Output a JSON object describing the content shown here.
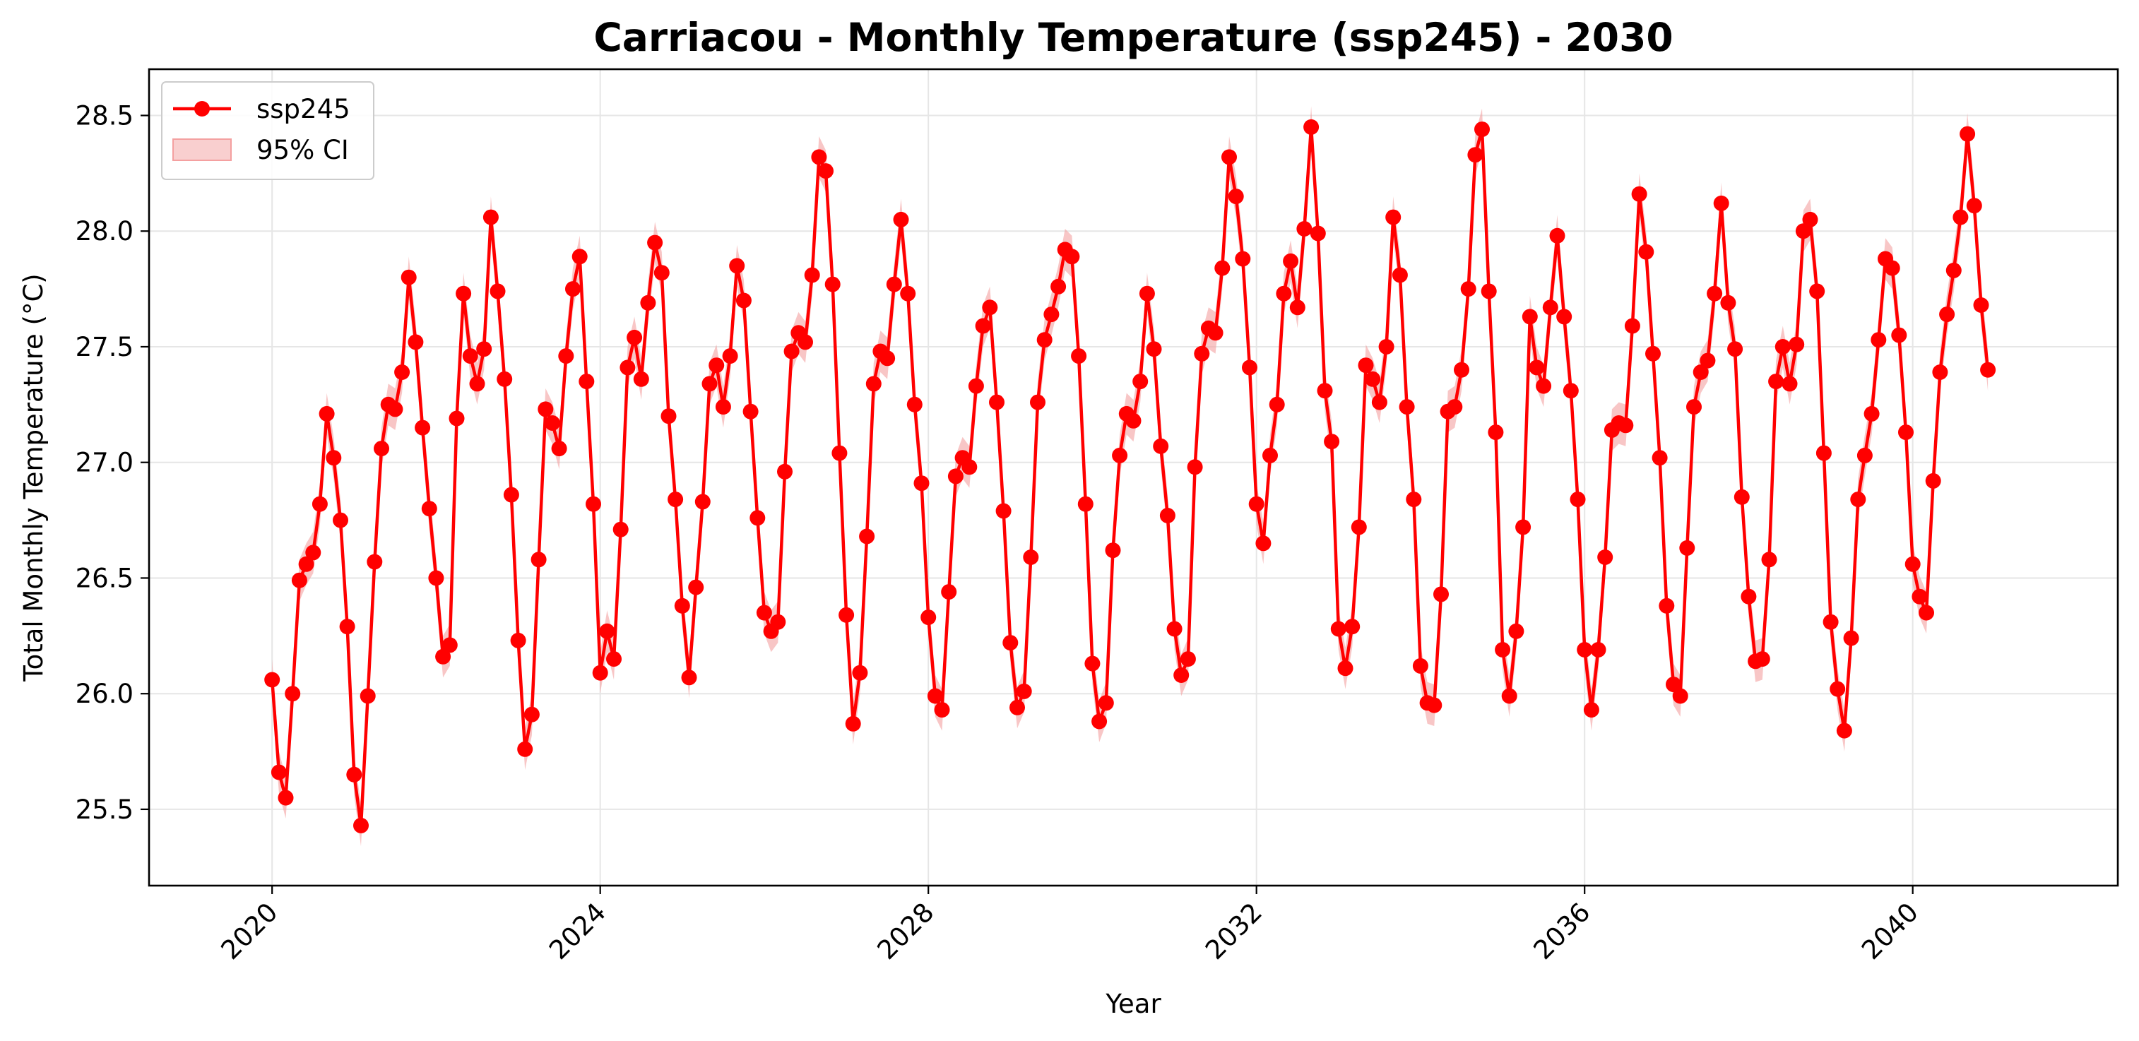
{
  "chart_data": {
    "type": "line",
    "title": "Carriacou - Monthly Temperature (ssp245) - 2030",
    "xlabel": "Year",
    "ylabel": "Total Monthly Temperature (°C)",
    "xlim": [
      2018.5,
      2042.5
    ],
    "ylim": [
      25.17,
      28.7
    ],
    "x_ticks": [
      2020,
      2024,
      2028,
      2032,
      2036,
      2040
    ],
    "x_tick_labels": [
      "2020",
      "2024",
      "2028",
      "2032",
      "2036",
      "2040"
    ],
    "y_ticks": [
      25.5,
      26.0,
      26.5,
      27.0,
      27.5,
      28.0,
      28.5
    ],
    "y_tick_labels": [
      "25.5",
      "26.0",
      "26.5",
      "27.0",
      "27.5",
      "28.0",
      "28.5"
    ],
    "grid": true,
    "legend_position": "top-left",
    "legend": [
      "ssp245",
      "95% CI"
    ],
    "series": [
      {
        "name": "ssp245",
        "color": "#ff0000",
        "ci_color": "#f4a0a0",
        "ci_halfwidth": 0.09,
        "x_start": 2020.0,
        "x_step_months": 1,
        "values": [
          26.06,
          25.66,
          25.55,
          26.0,
          26.49,
          26.56,
          26.61,
          26.82,
          27.21,
          27.02,
          26.75,
          26.29,
          25.65,
          25.43,
          25.99,
          26.57,
          27.06,
          27.25,
          27.23,
          27.39,
          27.8,
          27.52,
          27.15,
          26.8,
          26.5,
          26.16,
          26.21,
          27.19,
          27.73,
          27.46,
          27.34,
          27.49,
          28.06,
          27.74,
          27.36,
          26.86,
          26.23,
          25.76,
          25.91,
          26.58,
          27.23,
          27.17,
          27.06,
          27.46,
          27.75,
          27.89,
          27.35,
          26.82,
          26.09,
          26.27,
          26.15,
          26.71,
          27.41,
          27.54,
          27.36,
          27.69,
          27.95,
          27.82,
          27.2,
          26.84,
          26.38,
          26.07,
          26.46,
          26.83,
          27.34,
          27.42,
          27.24,
          27.46,
          27.85,
          27.7,
          27.22,
          26.76,
          26.35,
          26.27,
          26.31,
          26.96,
          27.48,
          27.56,
          27.52,
          27.81,
          28.32,
          28.26,
          27.77,
          27.04,
          26.34,
          25.87,
          26.09,
          26.68,
          27.34,
          27.48,
          27.45,
          27.77,
          28.05,
          27.73,
          27.25,
          26.91,
          26.33,
          25.99,
          25.93,
          26.44,
          26.94,
          27.02,
          26.98,
          27.33,
          27.59,
          27.67,
          27.26,
          26.79,
          26.22,
          25.94,
          26.01,
          26.59,
          27.26,
          27.53,
          27.64,
          27.76,
          27.92,
          27.89,
          27.46,
          26.82,
          26.13,
          25.88,
          25.96,
          26.62,
          27.03,
          27.21,
          27.18,
          27.35,
          27.73,
          27.49,
          27.07,
          26.77,
          26.28,
          26.08,
          26.15,
          26.98,
          27.47,
          27.58,
          27.56,
          27.84,
          28.32,
          28.15,
          27.88,
          27.41,
          26.82,
          26.65,
          27.03,
          27.25,
          27.73,
          27.87,
          27.67,
          28.01,
          28.45,
          27.99,
          27.31,
          27.09,
          26.28,
          26.11,
          26.29,
          26.72,
          27.42,
          27.36,
          27.26,
          27.5,
          28.06,
          27.81,
          27.24,
          26.84,
          26.12,
          25.96,
          25.95,
          26.43,
          27.22,
          27.24,
          27.4,
          27.75,
          28.33,
          28.44,
          27.74,
          27.13,
          26.19,
          25.99,
          26.27,
          26.72,
          27.63,
          27.41,
          27.33,
          27.67,
          27.98,
          27.63,
          27.31,
          26.84,
          26.19,
          25.93,
          26.19,
          26.59,
          27.14,
          27.17,
          27.16,
          27.59,
          28.16,
          27.91,
          27.47,
          27.02,
          26.38,
          26.04,
          25.99,
          26.63,
          27.24,
          27.39,
          27.44,
          27.73,
          28.12,
          27.69,
          27.49,
          26.85,
          26.42,
          26.14,
          26.15,
          26.58,
          27.35,
          27.5,
          27.34,
          27.51,
          28.0,
          28.05,
          27.74,
          27.04,
          26.31,
          26.02,
          25.84,
          26.24,
          26.84,
          27.03,
          27.21,
          27.53,
          27.88,
          27.84,
          27.55,
          27.13,
          26.56,
          26.42,
          26.35,
          26.92,
          27.39,
          27.64,
          27.83,
          28.06,
          28.42,
          28.11,
          27.68,
          27.4
        ]
      }
    ]
  }
}
